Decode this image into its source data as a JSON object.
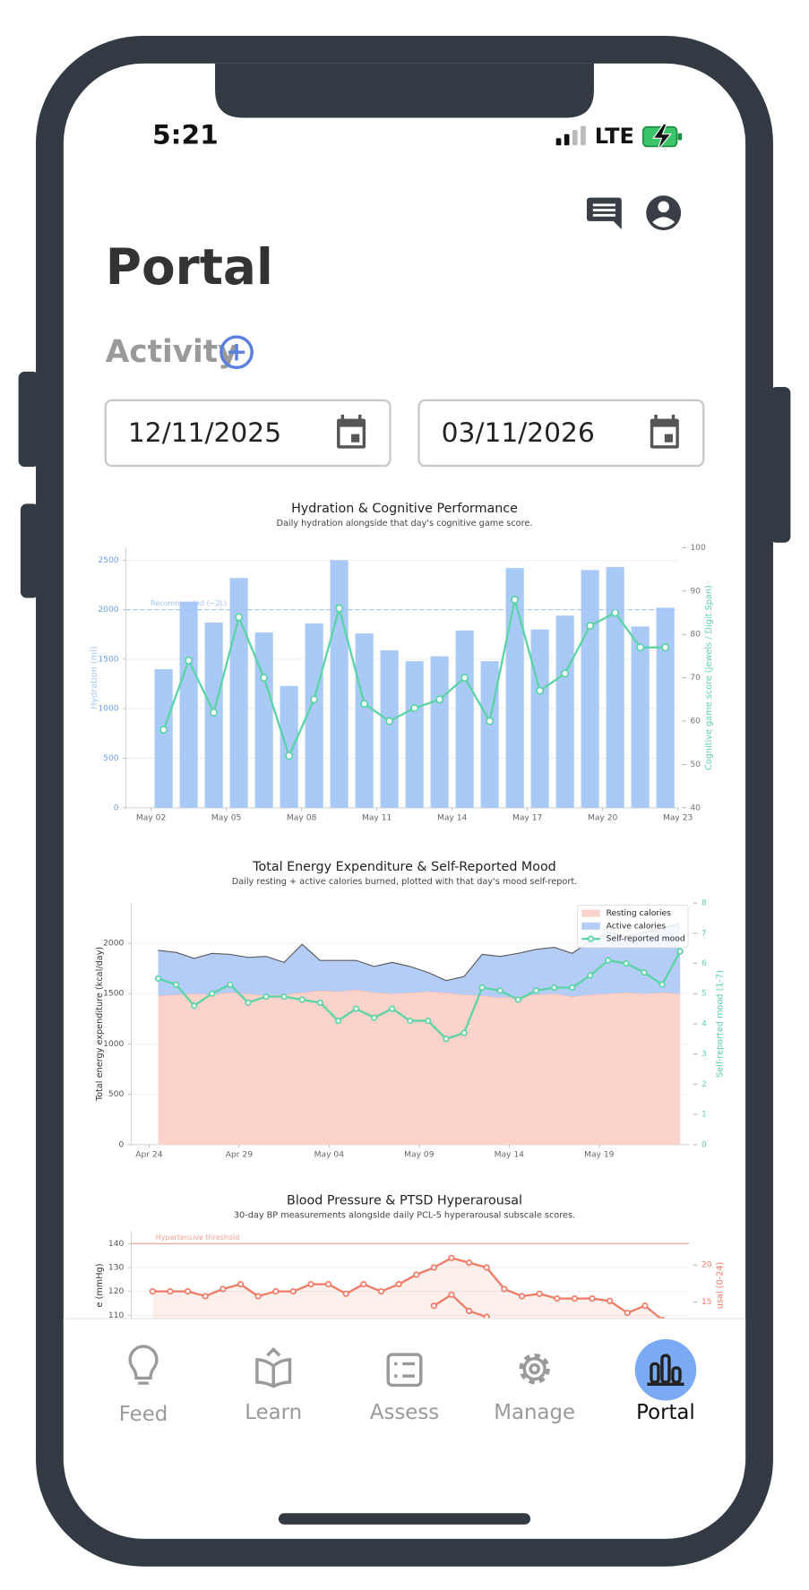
{
  "status_bar": {
    "time": "5:21",
    "network": "LTE"
  },
  "header": {
    "title": "Portal",
    "section": "Activity"
  },
  "date_range": [
    "12/11/2025",
    "03/11/2026"
  ],
  "chart_data": [
    {
      "type": "bar",
      "title": "Hydration & Cognitive Performance",
      "subtitle": "Daily hydration alongside that day's cognitive game score.",
      "ylabel": "Hydration (ml)",
      "y2label": "Cognitive game score (Jewels / Digit Span)",
      "x": [
        "May 02",
        "May 03",
        "May 04",
        "May 05",
        "May 06",
        "May 07",
        "May 08",
        "May 09",
        "May 10",
        "May 11",
        "May 12",
        "May 13",
        "May 14",
        "May 15",
        "May 16",
        "May 17",
        "May 18",
        "May 19",
        "May 20",
        "May 21",
        "May 22"
      ],
      "xlim": [
        "May 01",
        "May 23"
      ],
      "xticks": [
        "May 02",
        "May 05",
        "May 08",
        "May 11",
        "May 14",
        "May 17",
        "May 20",
        "May 23"
      ],
      "ylim": [
        0,
        2625
      ],
      "yticks": [
        0,
        500,
        1000,
        1500,
        2000,
        2500
      ],
      "y2lim": [
        40,
        100
      ],
      "y2ticks": [
        40,
        50,
        60,
        70,
        80,
        90,
        100
      ],
      "grid": true,
      "reference_lines": [
        {
          "value": 2000,
          "label": "Recommended (~2L)",
          "color": "#9fc3f5",
          "dashed": true
        }
      ],
      "series": [
        {
          "color": "#a9c9f7",
          "values": [
            1400,
            2080,
            1870,
            2320,
            1770,
            1230,
            1860,
            2500,
            1760,
            1590,
            1480,
            1530,
            1790,
            1480,
            2420,
            1800,
            1940,
            2400,
            2430,
            1830,
            2020
          ]
        },
        {
          "type": "line",
          "axis": "y2",
          "color": "#5ad4a4",
          "values": [
            58,
            74,
            62,
            84,
            70,
            52,
            65,
            86,
            64,
            60,
            63,
            65,
            70,
            60,
            88,
            67,
            71,
            82,
            85,
            77,
            77
          ]
        }
      ]
    },
    {
      "type": "area",
      "title": "Total Energy Expenditure & Self-Reported Mood",
      "subtitle": "Daily resting + active calories burned, plotted with that day's mood self-report.",
      "ylabel": "Total energy expenditure (kcal/day)",
      "y2label": "Self-reported mood (1-7)",
      "x": [
        "Apr 24",
        "Apr 25",
        "Apr 26",
        "Apr 27",
        "Apr 28",
        "Apr 29",
        "Apr 30",
        "May 01",
        "May 02",
        "May 03",
        "May 04",
        "May 05",
        "May 06",
        "May 07",
        "May 08",
        "May 09",
        "May 10",
        "May 11",
        "May 12",
        "May 13",
        "May 14",
        "May 15",
        "May 16",
        "May 17",
        "May 18",
        "May 19",
        "May 20",
        "May 21",
        "May 22",
        "May 23"
      ],
      "xlim": [
        "Apr 23",
        "May 24"
      ],
      "xticks": [
        "Apr 24",
        "Apr 29",
        "May 04",
        "May 09",
        "May 14",
        "May 19"
      ],
      "ylim": [
        0,
        2400
      ],
      "yticks": [
        0,
        500,
        1000,
        1500,
        2000
      ],
      "y2lim": [
        0,
        8
      ],
      "y2ticks": [
        0,
        1,
        2,
        3,
        4,
        5,
        6,
        7,
        8
      ],
      "grid": true,
      "legend": "upper right",
      "series": [
        {
          "name": "Resting calories",
          "color": "#fcd3cb",
          "edgecolor": "#f5b8ad",
          "values": [
            1480,
            1490,
            1500,
            1490,
            1510,
            1500,
            1480,
            1490,
            1510,
            1530,
            1520,
            1540,
            1510,
            1500,
            1510,
            1520,
            1510,
            1490,
            1480,
            1460,
            1470,
            1490,
            1500,
            1470,
            1490,
            1500,
            1510,
            1500,
            1510,
            1500
          ]
        },
        {
          "name": "Active calories",
          "color": "#b3cdf7",
          "edgecolor": "#5a5a5a",
          "values": [
            450,
            420,
            350,
            410,
            380,
            360,
            390,
            320,
            480,
            300,
            310,
            290,
            260,
            310,
            260,
            190,
            120,
            180,
            410,
            410,
            430,
            450,
            460,
            430,
            530,
            610,
            560,
            610,
            640,
            700
          ]
        },
        {
          "name": "Self-reported mood",
          "type": "line",
          "axis": "y2",
          "color": "#5ad4a4",
          "values": [
            5.5,
            5.3,
            4.6,
            5.0,
            5.3,
            4.7,
            4.9,
            4.9,
            4.8,
            4.7,
            4.1,
            4.5,
            4.2,
            4.5,
            4.1,
            4.1,
            3.5,
            3.7,
            5.2,
            5.1,
            4.8,
            5.1,
            5.2,
            5.2,
            5.6,
            6.1,
            6.0,
            5.7,
            5.3,
            6.4
          ]
        }
      ]
    },
    {
      "type": "line",
      "title": "Blood Pressure & PTSD Hyperarousal",
      "subtitle": "30-day BP measurements alongside daily PCL-5 hyperarousal subscale scores.",
      "ylabel": "e (mmHg)",
      "y2label": "usal (0-24)",
      "ylim": [
        100,
        145
      ],
      "yticks": [
        110,
        120,
        130,
        140
      ],
      "y2lim": [
        10,
        24.5
      ],
      "y2ticks": [
        15,
        20
      ],
      "grid": true,
      "reference_lines": [
        {
          "value": 140,
          "label": "Hypertensive threshold",
          "color": "#f4a090",
          "dashed": false
        }
      ],
      "series": [
        {
          "color": "#f07a64",
          "fill": true,
          "values": [
            120,
            120,
            120,
            118,
            121,
            123,
            118,
            120,
            120,
            123,
            123,
            119,
            123,
            120,
            123,
            127,
            130,
            134,
            132,
            130,
            121,
            118,
            119,
            117,
            117,
            117,
            116,
            111,
            114,
            108
          ]
        },
        {
          "axis": "y2",
          "color": "#f07a64",
          "values": [
            null,
            null,
            null,
            null,
            null,
            null,
            null,
            null,
            null,
            null,
            null,
            null,
            null,
            null,
            null,
            null,
            14.5,
            16,
            13.8,
            13,
            null,
            null,
            null,
            null,
            null,
            null,
            null,
            null,
            null,
            null
          ]
        }
      ]
    }
  ],
  "nav": {
    "items": [
      "Feed",
      "Learn",
      "Assess",
      "Manage",
      "Portal"
    ],
    "active": 4
  }
}
